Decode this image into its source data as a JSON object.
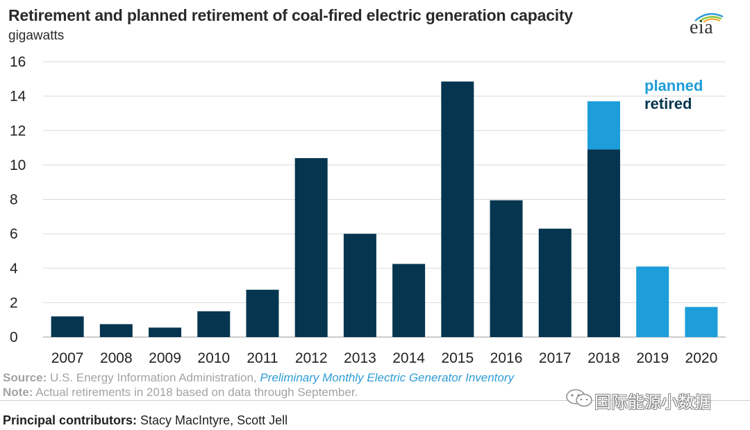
{
  "header": {
    "title": "Retirement and planned retirement of coal-fired electric generation capacity",
    "subtitle": "gigawatts",
    "logo_text": "eia"
  },
  "colors": {
    "retired": "#05354f",
    "planned": "#1d9dd9",
    "grid": "#d9d9d9",
    "text": "#222222"
  },
  "chart_data": {
    "type": "bar",
    "stacked": true,
    "title": "Retirement and planned retirement of coal-fired electric generation capacity",
    "ylabel": "gigawatts",
    "categories": [
      "2007",
      "2008",
      "2009",
      "2010",
      "2011",
      "2012",
      "2013",
      "2014",
      "2015",
      "2016",
      "2017",
      "2018",
      "2019",
      "2020"
    ],
    "series": [
      {
        "name": "retired",
        "color": "#05354f",
        "values": [
          1.2,
          0.75,
          0.55,
          1.5,
          2.75,
          10.4,
          6.0,
          4.25,
          14.85,
          7.95,
          6.3,
          10.9,
          0,
          0
        ]
      },
      {
        "name": "planned",
        "color": "#1d9dd9",
        "values": [
          0,
          0,
          0,
          0,
          0,
          0,
          0,
          0,
          0,
          0,
          0,
          2.8,
          4.1,
          1.75
        ]
      }
    ],
    "ylim": [
      0,
      16
    ],
    "yticks": [
      "0",
      "2",
      "4",
      "6",
      "8",
      "10",
      "12",
      "14",
      "16"
    ],
    "grid": true,
    "legend_position": "top-right"
  },
  "legend": {
    "planned_label": "planned",
    "retired_label": "retired"
  },
  "footer": {
    "source_label": "Source:",
    "source_text": " U.S. Energy Information Administration, ",
    "source_link": "Preliminary Monthly Electric Generator Inventory",
    "note_label": "Note:",
    "note_text": " Actual retirements in 2018 based on data through September.",
    "contributors_label": "Principal contributors:",
    "contributors_text": " Stacy MacIntyre, Scott Jell"
  },
  "watermark": {
    "text": "国际能源小数据",
    "icon": "wechat-icon"
  }
}
